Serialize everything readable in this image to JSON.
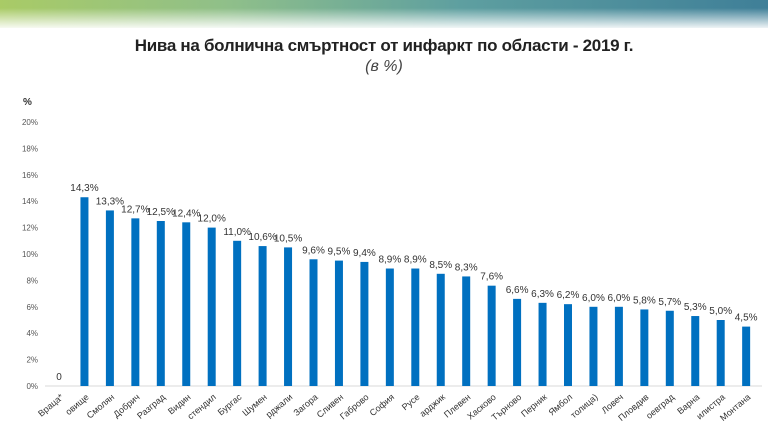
{
  "header": {
    "band_colors": [
      "#a9cb66",
      "#3f7f98"
    ]
  },
  "chart_data": {
    "type": "bar",
    "title": "Нива на болнична смъртност от инфаркт по области - 2019 г.",
    "subtitle": "(в %)",
    "ylabel": "%",
    "xlabel": "",
    "ylim": [
      0,
      20
    ],
    "yticks": [
      "0%",
      "2%",
      "4%",
      "6%",
      "8%",
      "10%",
      "12%",
      "14%",
      "16%",
      "18%",
      "20%"
    ],
    "grid": false,
    "bar_color": "#0070c0",
    "categories": [
      "Враца*",
      "овище",
      "Смолян",
      "Добрич",
      "Разград",
      "Видин",
      "стендил",
      "Бургас",
      "Шумен",
      "рджали",
      "Загора",
      "Сливен",
      "Габрово",
      "София",
      "Русе",
      "арджик",
      "Плевен",
      "Хасково",
      "Търново",
      "Перник",
      "Ямбол",
      "толица)",
      "Ловеч",
      "Пловдив",
      "оевград",
      "Варна",
      "илистра",
      "Монтана"
    ],
    "values": [
      0,
      14.3,
      13.3,
      12.7,
      12.5,
      12.4,
      12.0,
      11.0,
      10.6,
      10.5,
      9.6,
      9.5,
      9.4,
      8.9,
      8.9,
      8.5,
      8.3,
      7.6,
      6.6,
      6.3,
      6.2,
      6.0,
      6.0,
      5.8,
      5.7,
      5.3,
      5.0,
      4.5
    ],
    "data_labels": [
      "0",
      "14,3%",
      "13,3%",
      "12,7%",
      "12,5%",
      "12,4%",
      "12,0%",
      "11,0%",
      "10,6%",
      "10,5%",
      "9,6%",
      "9,5%",
      "9,4%",
      "8,9%",
      "8,9%",
      "8,5%",
      "8,3%",
      "7,6%",
      "6,6%",
      "6,3%",
      "6,2%",
      "6,0%",
      "6,0%",
      "5,8%",
      "5,7%",
      "5,3%",
      "5,0%",
      "4,5%"
    ]
  }
}
